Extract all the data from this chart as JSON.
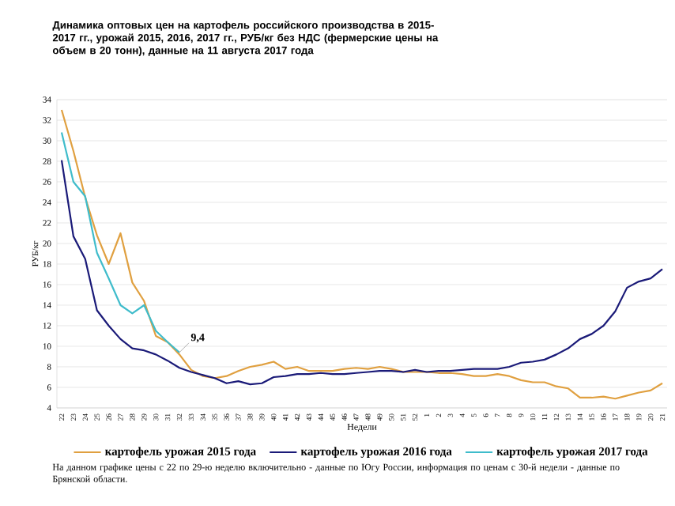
{
  "chart_data": {
    "type": "line",
    "title": "Динамика оптовых цен на картофель российского производства в 2015-2017 гг., урожай 2015, 2016, 2017 гг., РУБ/кг без НДС (фермерские цены на объем в 20 тонн), данные на 11 августа 2017 года",
    "xlabel": "Недели",
    "ylabel": "РУБ/кг",
    "categories": [
      "22",
      "23",
      "24",
      "25",
      "26",
      "27",
      "28",
      "29",
      "30",
      "31",
      "32",
      "33",
      "34",
      "35",
      "36",
      "37",
      "38",
      "39",
      "40",
      "41",
      "42",
      "43",
      "44",
      "45",
      "46",
      "47",
      "48",
      "49",
      "50",
      "51",
      "52",
      "1",
      "2",
      "3",
      "4",
      "5",
      "6",
      "7",
      "8",
      "9",
      "10",
      "11",
      "12",
      "13",
      "14",
      "15",
      "16",
      "17",
      "18",
      "19",
      "20",
      "21"
    ],
    "series": [
      {
        "name": "картофель урожая 2015 года",
        "color": "#e0a040",
        "values": [
          33.0,
          29.0,
          24.5,
          20.8,
          18.0,
          21.0,
          16.2,
          14.4,
          11.0,
          10.4,
          9.2,
          7.7,
          7.1,
          6.9,
          7.1,
          7.6,
          8.0,
          8.2,
          8.5,
          7.8,
          8.0,
          7.6,
          7.6,
          7.6,
          7.8,
          7.9,
          7.8,
          8.0,
          7.8,
          7.5,
          7.5,
          7.5,
          7.4,
          7.4,
          7.3,
          7.1,
          7.1,
          7.3,
          7.1,
          6.7,
          6.5,
          6.5,
          6.1,
          5.9,
          5.0,
          5.0,
          5.1,
          4.9,
          5.2,
          5.5,
          5.7,
          6.4
        ]
      },
      {
        "name": "картофель урожая 2016 года",
        "color": "#1a1a78",
        "values": [
          28.1,
          20.7,
          18.5,
          13.5,
          12.0,
          10.7,
          9.8,
          9.6,
          9.2,
          8.6,
          7.9,
          7.5,
          7.2,
          6.9,
          6.4,
          6.6,
          6.3,
          6.4,
          7.0,
          7.1,
          7.3,
          7.3,
          7.4,
          7.3,
          7.3,
          7.4,
          7.5,
          7.6,
          7.6,
          7.5,
          7.7,
          7.5,
          7.6,
          7.6,
          7.7,
          7.8,
          7.8,
          7.8,
          8.0,
          8.4,
          8.5,
          8.7,
          9.2,
          9.8,
          10.7,
          11.2,
          12.0,
          13.4,
          15.7,
          16.3,
          16.6,
          17.5
        ]
      },
      {
        "name": "картофель урожая 2017 года",
        "color": "#3fbccb",
        "values": [
          30.8,
          26.0,
          24.6,
          19.1,
          16.6,
          14.0,
          13.2,
          14.0,
          11.5,
          10.4,
          9.4,
          null,
          null,
          null,
          null,
          null,
          null,
          null,
          null,
          null,
          null,
          null,
          null,
          null,
          null,
          null,
          null,
          null,
          null,
          null,
          null,
          null,
          null,
          null,
          null,
          null,
          null,
          null,
          null,
          null,
          null,
          null,
          null,
          null,
          null,
          null,
          null,
          null,
          null,
          null,
          null,
          null
        ]
      }
    ],
    "ylim": [
      4,
      34
    ],
    "yticks": [
      4,
      6,
      8,
      10,
      12,
      14,
      16,
      18,
      20,
      22,
      24,
      26,
      28,
      30,
      32,
      34
    ],
    "grid": "y",
    "legend": "bottom",
    "annotations": [
      {
        "text": "9,4",
        "x": "32",
        "y": 9.4
      },
      "На данном графике цены с 22 по 29-ю неделю включительно - данные по Югу России, информация по ценам с 30-й недели - данные по Брянской области."
    ]
  }
}
